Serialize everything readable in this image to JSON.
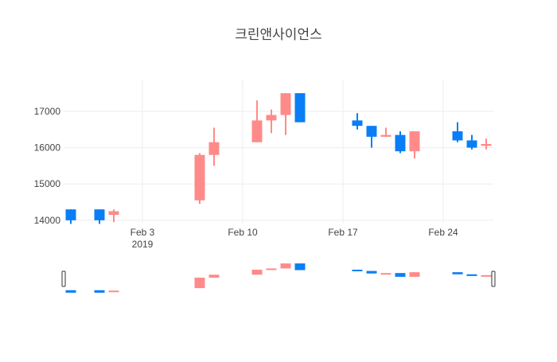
{
  "chart_data": {
    "type": "candlestick",
    "title": "크린앤사이언스",
    "xlabel": "",
    "ylabel": "",
    "ylim": [
      13800,
      17700
    ],
    "xlim": [
      "2019-01-28T12:00",
      "2019-02-27T12:00"
    ],
    "y_ticks": [
      14000,
      15000,
      16000,
      17000
    ],
    "x_ticks": [
      {
        "date": "2019-02-03",
        "label": "Feb 3",
        "sublabel": "2019"
      },
      {
        "date": "2019-02-10",
        "label": "Feb 10",
        "sublabel": ""
      },
      {
        "date": "2019-02-17",
        "label": "Feb 17",
        "sublabel": ""
      },
      {
        "date": "2019-02-24",
        "label": "Feb 24",
        "sublabel": ""
      }
    ],
    "grid": true,
    "range_slider": true,
    "colors": {
      "increasing": "#ff8a8a",
      "decreasing": "#0a7ef5"
    },
    "candles": [
      {
        "date": "2019-01-29",
        "open": 14300,
        "high": 14300,
        "low": 13900,
        "close": 14000
      },
      {
        "date": "2019-01-31",
        "open": 14300,
        "high": 14300,
        "low": 13900,
        "close": 14000
      },
      {
        "date": "2019-02-01",
        "open": 14150,
        "high": 14300,
        "low": 13950,
        "close": 14250
      },
      {
        "date": "2019-02-07",
        "open": 14550,
        "high": 15850,
        "low": 14450,
        "close": 15800
      },
      {
        "date": "2019-02-08",
        "open": 15800,
        "high": 16550,
        "low": 15500,
        "close": 16150
      },
      {
        "date": "2019-02-11",
        "open": 16150,
        "high": 17300,
        "low": 16150,
        "close": 16750
      },
      {
        "date": "2019-02-12",
        "open": 16750,
        "high": 17050,
        "low": 16400,
        "close": 16900
      },
      {
        "date": "2019-02-13",
        "open": 16900,
        "high": 17500,
        "low": 16350,
        "close": 17500
      },
      {
        "date": "2019-02-14",
        "open": 17500,
        "high": 17500,
        "low": 16700,
        "close": 16700
      },
      {
        "date": "2019-02-18",
        "open": 16750,
        "high": 16950,
        "low": 16500,
        "close": 16600
      },
      {
        "date": "2019-02-19",
        "open": 16600,
        "high": 16600,
        "low": 16000,
        "close": 16300
      },
      {
        "date": "2019-02-20",
        "open": 16300,
        "high": 16550,
        "low": 16300,
        "close": 16350
      },
      {
        "date": "2019-02-21",
        "open": 16350,
        "high": 16450,
        "low": 15850,
        "close": 15900
      },
      {
        "date": "2019-02-22",
        "open": 15900,
        "high": 16450,
        "low": 15700,
        "close": 16450
      },
      {
        "date": "2019-02-25",
        "open": 16450,
        "high": 16700,
        "low": 16150,
        "close": 16200
      },
      {
        "date": "2019-02-26",
        "open": 16200,
        "high": 16350,
        "low": 15950,
        "close": 16000
      },
      {
        "date": "2019-02-27",
        "open": 16050,
        "high": 16250,
        "low": 15950,
        "close": 16100
      }
    ]
  }
}
